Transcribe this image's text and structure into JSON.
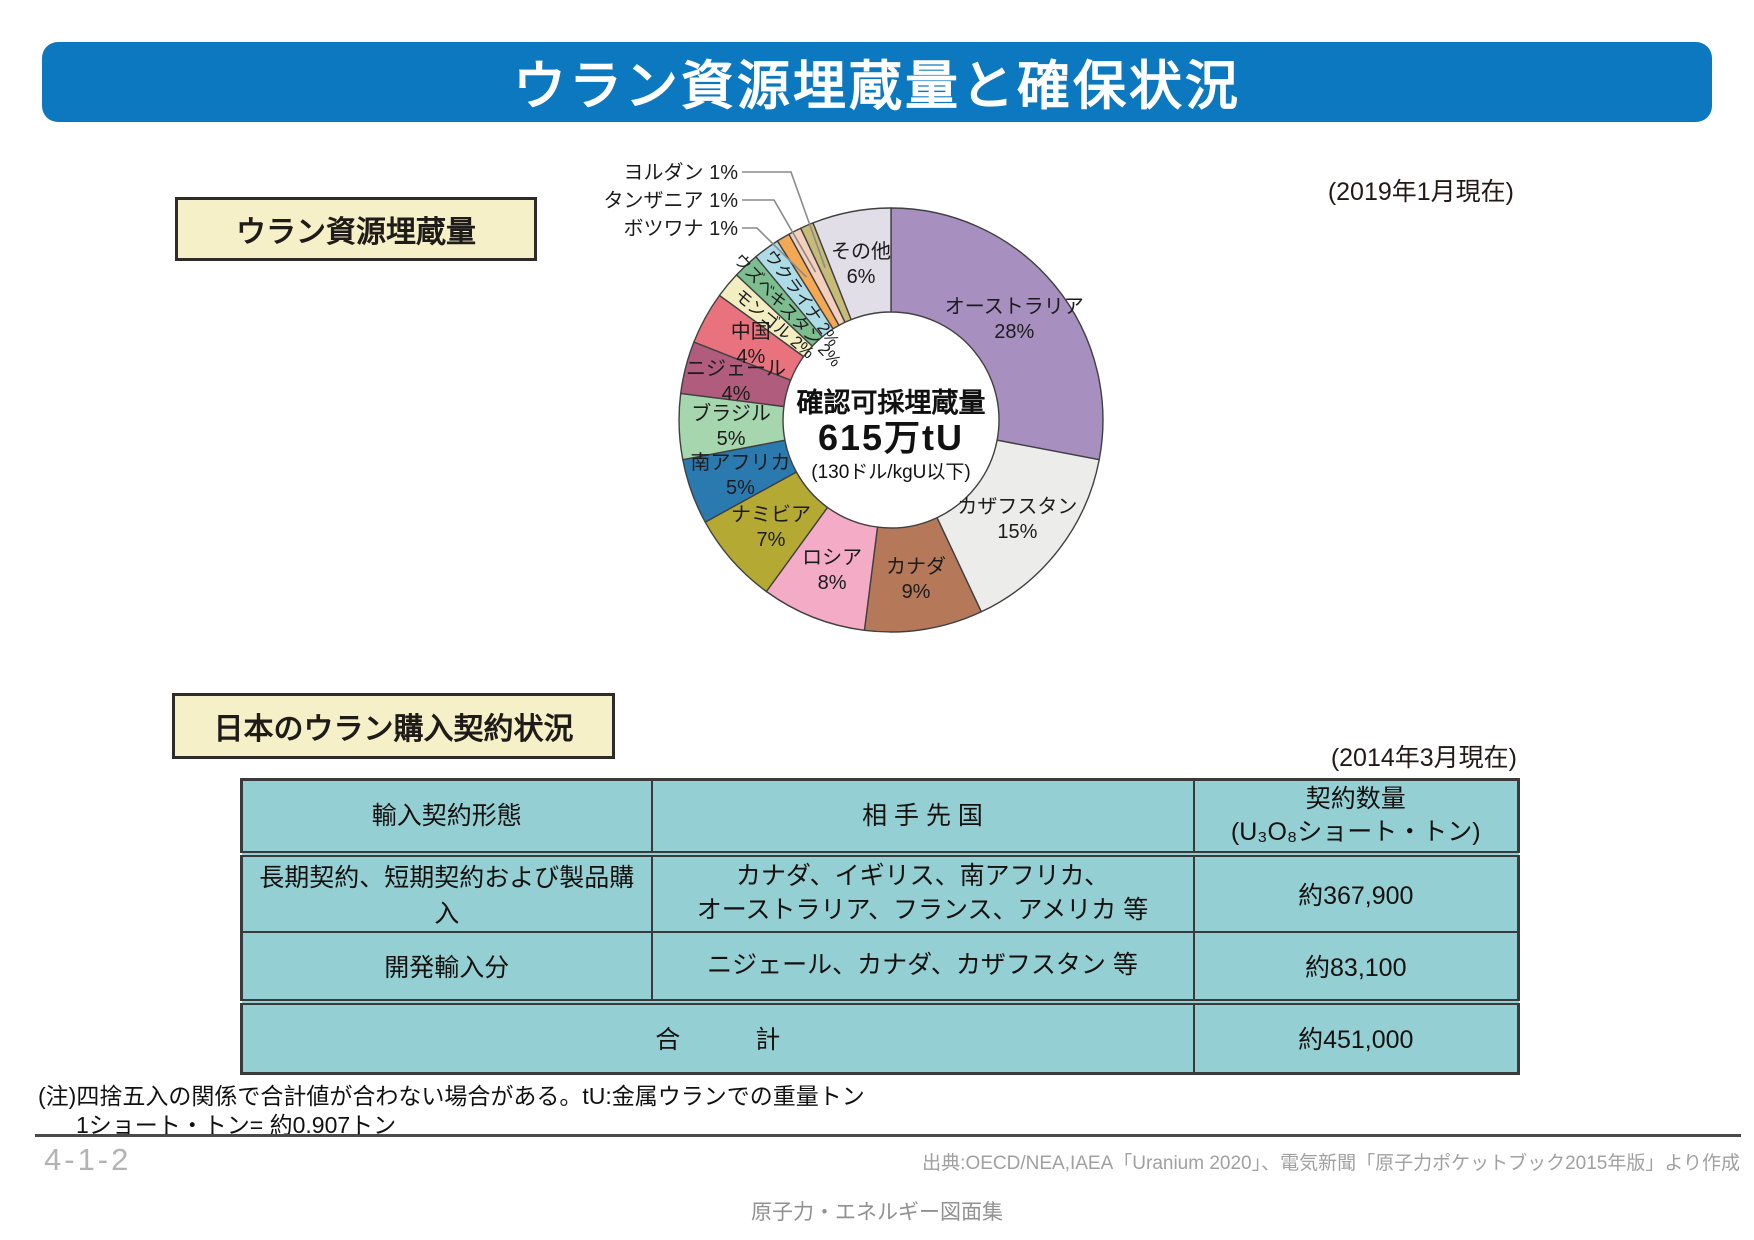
{
  "page_title": "ウラン資源埋蔵量と確保状況",
  "sections": {
    "reserves": {
      "label": "ウラン資源埋蔵量",
      "date_note": "(2019年1月現在)"
    },
    "contracts": {
      "label": "日本のウラン購入契約状況",
      "date_note": "(2014年3月現在)"
    }
  },
  "chart_data": {
    "type": "pie",
    "title": "ウラン資源埋蔵量",
    "units": "%",
    "center_label": {
      "line1": "確認可採埋蔵量",
      "line2": "615万tU",
      "line3": "(130ドル/kgU以下)"
    },
    "categories": [
      "オーストラリア",
      "カザフスタン",
      "カナダ",
      "ロシア",
      "ナミビア",
      "南アフリカ",
      "ブラジル",
      "ニジェール",
      "中国",
      "モンゴル",
      "ウズベキスタン",
      "ウクライナ",
      "ボツワナ",
      "タンザニア",
      "ヨルダン",
      "その他"
    ],
    "values": [
      28,
      15,
      9,
      8,
      7,
      5,
      5,
      4,
      4,
      2,
      2,
      2,
      1,
      1,
      1,
      6
    ],
    "slices": [
      {
        "label": "オーストラリア",
        "value": 28,
        "color": "#a78fc0",
        "label_style": "inside"
      },
      {
        "label": "カザフスタン",
        "value": 15,
        "color": "#ececeb",
        "label_style": "inside"
      },
      {
        "label": "カナダ",
        "value": 9,
        "color": "#b5795a",
        "label_style": "inside"
      },
      {
        "label": "ロシア",
        "value": 8,
        "color": "#f3abc6",
        "label_style": "inside"
      },
      {
        "label": "ナミビア",
        "value": 7,
        "color": "#b3a933",
        "label_style": "inside"
      },
      {
        "label": "南アフリカ",
        "value": 5,
        "color": "#2a7ab0",
        "label_style": "inside"
      },
      {
        "label": "ブラジル",
        "value": 5,
        "color": "#a6d6ae",
        "label_style": "inside"
      },
      {
        "label": "ニジェール",
        "value": 4,
        "color": "#b05c7c",
        "label_style": "inside"
      },
      {
        "label": "中国",
        "value": 4,
        "color": "#e8737f",
        "label_style": "inside"
      },
      {
        "label": "モンゴル",
        "value": 2,
        "color": "#f2eec2",
        "label_style": "rotated"
      },
      {
        "label": "ウズベキスタン",
        "value": 2,
        "color": "#7dbe90",
        "label_style": "rotated"
      },
      {
        "label": "ウクライナ",
        "value": 2,
        "color": "#aedce6",
        "label_style": "rotated"
      },
      {
        "label": "ボツワナ",
        "value": 1,
        "color": "#f3a954",
        "label_style": "callout"
      },
      {
        "label": "タンザニア",
        "value": 1,
        "color": "#f4cfbc",
        "label_style": "callout"
      },
      {
        "label": "ヨルダン",
        "value": 1,
        "color": "#c6bc77",
        "label_style": "callout"
      },
      {
        "label": "その他",
        "value": 6,
        "color": "#e2dee8",
        "label_style": "inside"
      }
    ]
  },
  "table": {
    "headers": [
      "輸入契約形態",
      "相 手 先 国",
      "契約数量\n(U₃O₈ショート・トン)"
    ],
    "rows": [
      {
        "type": "長期契約、短期契約および製品購入",
        "countries": "カナダ、イギリス、南アフリカ、\nオーストラリア、フランス、アメリカ 等",
        "quantity": "約367,900"
      },
      {
        "type": "開発輸入分",
        "countries": "ニジェール、カナダ、カザフスタン 等",
        "quantity": "約83,100"
      }
    ],
    "total": {
      "label": "合　　　計",
      "quantity": "約451,000"
    }
  },
  "notes": [
    "(注)四捨五入の関係で合計値が合わない場合がある。tU:金属ウランでの重量トン",
    "1ショート・トン= 約0.907トン"
  ],
  "footer": {
    "page_number": "4-1-2",
    "source": "出典:OECD/NEA,IAEA「Uranium 2020」、電気新聞「原子力ポケットブック2015年版」より作成",
    "publication": "原子力・エネルギー図面集"
  }
}
